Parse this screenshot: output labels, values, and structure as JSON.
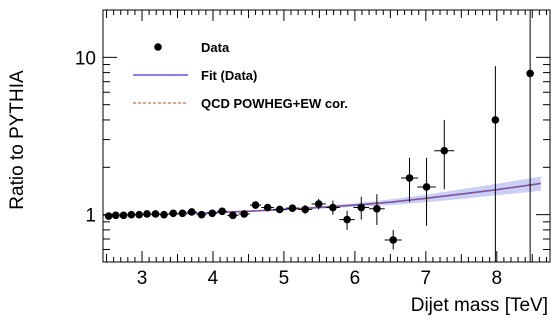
{
  "chart_data": {
    "type": "scatter",
    "xlabel": "Dijet mass [TeV]",
    "ylabel": "Ratio to PYTHIA",
    "x_range": [
      2.45,
      8.75
    ],
    "y_range": [
      0.5,
      20
    ],
    "y_scale": "log",
    "x_ticks": [
      3,
      4,
      5,
      6,
      7,
      8
    ],
    "y_tick_labels": [
      1,
      10
    ],
    "legend_position": "top-left",
    "legend": [
      {
        "label": "Data",
        "style": "marker",
        "color": "#000000"
      },
      {
        "label": "Fit (Data)",
        "style": "line",
        "color": "#5a55e6"
      },
      {
        "label": "QCD POWHEG+EW cor.",
        "style": "dashed",
        "color": "#b0502a"
      }
    ],
    "series": [
      {
        "name": "Data",
        "points": [
          {
            "x": 2.53,
            "y": 0.98,
            "xerr": 0.05,
            "ylo": 0.975,
            "yhi": 0.985
          },
          {
            "x": 2.63,
            "y": 0.99,
            "xerr": 0.05,
            "ylo": 0.985,
            "yhi": 0.995
          },
          {
            "x": 2.74,
            "y": 0.99,
            "xerr": 0.05,
            "ylo": 0.985,
            "yhi": 0.995
          },
          {
            "x": 2.85,
            "y": 1.0,
            "xerr": 0.05,
            "ylo": 0.995,
            "yhi": 1.005
          },
          {
            "x": 2.96,
            "y": 1.0,
            "xerr": 0.05,
            "ylo": 0.995,
            "yhi": 1.005
          },
          {
            "x": 3.07,
            "y": 1.01,
            "xerr": 0.05,
            "ylo": 1.0,
            "yhi": 1.02
          },
          {
            "x": 3.19,
            "y": 1.01,
            "xerr": 0.06,
            "ylo": 1.0,
            "yhi": 1.02
          },
          {
            "x": 3.31,
            "y": 1.0,
            "xerr": 0.06,
            "ylo": 0.99,
            "yhi": 1.01
          },
          {
            "x": 3.44,
            "y": 1.02,
            "xerr": 0.06,
            "ylo": 1.01,
            "yhi": 1.03
          },
          {
            "x": 3.57,
            "y": 1.02,
            "xerr": 0.06,
            "ylo": 1.01,
            "yhi": 1.03
          },
          {
            "x": 3.7,
            "y": 1.04,
            "xerr": 0.07,
            "ylo": 1.02,
            "yhi": 1.06
          },
          {
            "x": 3.84,
            "y": 1.0,
            "xerr": 0.07,
            "ylo": 0.98,
            "yhi": 1.02
          },
          {
            "x": 3.99,
            "y": 1.02,
            "xerr": 0.07,
            "ylo": 1.0,
            "yhi": 1.04
          },
          {
            "x": 4.13,
            "y": 1.05,
            "xerr": 0.07,
            "ylo": 1.03,
            "yhi": 1.07
          },
          {
            "x": 4.28,
            "y": 0.99,
            "xerr": 0.08,
            "ylo": 0.96,
            "yhi": 1.02
          },
          {
            "x": 4.44,
            "y": 1.01,
            "xerr": 0.08,
            "ylo": 0.98,
            "yhi": 1.04
          },
          {
            "x": 4.6,
            "y": 1.15,
            "xerr": 0.08,
            "ylo": 1.11,
            "yhi": 1.19
          },
          {
            "x": 4.77,
            "y": 1.11,
            "xerr": 0.09,
            "ylo": 1.07,
            "yhi": 1.15
          },
          {
            "x": 4.94,
            "y": 1.08,
            "xerr": 0.09,
            "ylo": 1.03,
            "yhi": 1.13
          },
          {
            "x": 5.12,
            "y": 1.1,
            "xerr": 0.09,
            "ylo": 1.04,
            "yhi": 1.16
          },
          {
            "x": 5.3,
            "y": 1.08,
            "xerr": 0.1,
            "ylo": 1.01,
            "yhi": 1.15
          },
          {
            "x": 5.49,
            "y": 1.17,
            "xerr": 0.1,
            "ylo": 1.08,
            "yhi": 1.26
          },
          {
            "x": 5.69,
            "y": 1.11,
            "xerr": 0.1,
            "ylo": 1.0,
            "yhi": 1.23
          },
          {
            "x": 5.89,
            "y": 0.93,
            "xerr": 0.11,
            "ylo": 0.8,
            "yhi": 1.06
          },
          {
            "x": 6.09,
            "y": 1.11,
            "xerr": 0.11,
            "ylo": 0.93,
            "yhi": 1.3
          },
          {
            "x": 6.31,
            "y": 1.09,
            "xerr": 0.11,
            "ylo": 0.86,
            "yhi": 1.35
          },
          {
            "x": 6.54,
            "y": 0.69,
            "xerr": 0.12,
            "ylo": 0.6,
            "yhi": 0.8
          },
          {
            "x": 6.77,
            "y": 1.71,
            "xerr": 0.12,
            "ylo": 1.2,
            "yhi": 2.3
          },
          {
            "x": 7.01,
            "y": 1.5,
            "xerr": 0.13,
            "ylo": 0.85,
            "yhi": 2.3
          },
          {
            "x": 7.26,
            "y": 2.55,
            "xerr": 0.14,
            "ylo": 1.45,
            "yhi": 4.0
          },
          {
            "x": 7.98,
            "y": 4.0,
            "xerr": 0.0,
            "ylo": 0.5,
            "yhi": 8.8
          },
          {
            "x": 8.47,
            "y": 7.9,
            "xerr": 0.0,
            "ylo": 0.5,
            "yhi": 20
          }
        ]
      },
      {
        "name": "Fit (Data)",
        "x": [
          2.45,
          3.0,
          3.5,
          4.0,
          4.5,
          5.0,
          5.5,
          6.0,
          6.5,
          7.0,
          7.5,
          8.0,
          8.5,
          8.62
        ],
        "y": [
          0.99,
          1.0,
          1.01,
          1.03,
          1.05,
          1.08,
          1.11,
          1.15,
          1.2,
          1.27,
          1.35,
          1.44,
          1.55,
          1.58
        ],
        "band_lo": [
          0.985,
          0.995,
          1.005,
          1.02,
          1.04,
          1.07,
          1.09,
          1.12,
          1.15,
          1.2,
          1.26,
          1.33,
          1.4,
          1.42
        ],
        "band_hi": [
          0.995,
          1.005,
          1.015,
          1.04,
          1.065,
          1.095,
          1.13,
          1.18,
          1.25,
          1.34,
          1.45,
          1.57,
          1.71,
          1.75
        ]
      },
      {
        "name": "QCD POWHEG+EW cor.",
        "x": [
          2.45,
          3.0,
          3.5,
          4.0,
          4.5,
          5.0,
          5.5,
          6.0,
          6.5,
          7.0,
          7.5,
          8.0,
          8.5,
          8.62
        ],
        "y": [
          0.99,
          1.0,
          1.01,
          1.03,
          1.05,
          1.08,
          1.11,
          1.15,
          1.2,
          1.27,
          1.35,
          1.44,
          1.55,
          1.58
        ]
      }
    ]
  }
}
